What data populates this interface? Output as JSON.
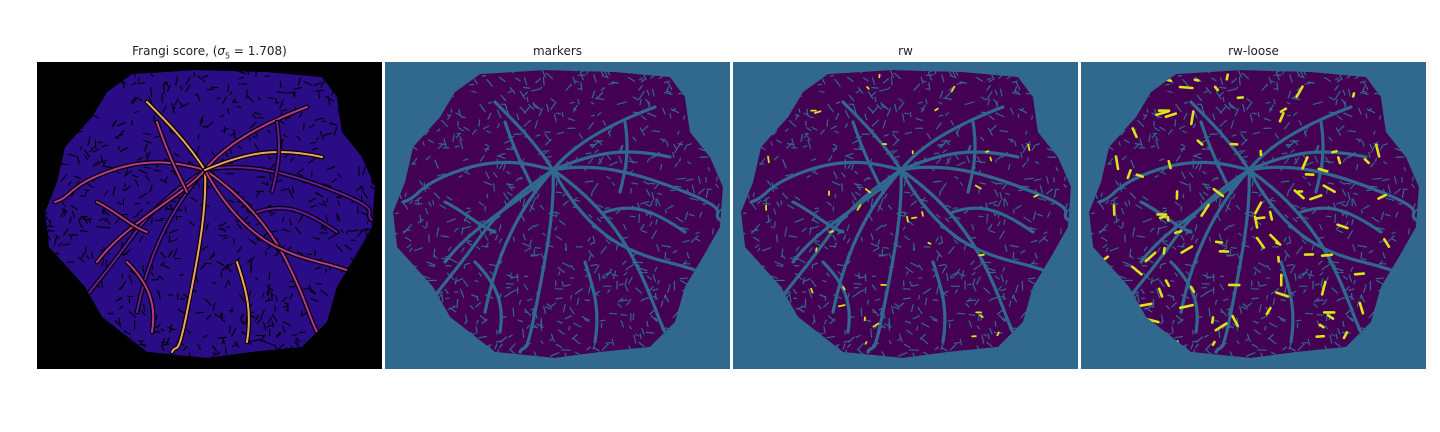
{
  "titles": {
    "frangi_prefix": "Frangi score, (",
    "frangi_sigma": "σ",
    "frangi_sub": "5",
    "frangi_suffix": " = 1.708)",
    "markers": "markers",
    "rw": "rw",
    "rw_loose": "rw-loose"
  },
  "colors": {
    "frangi_bg": "#000000",
    "frangi_tissue": "#2a0c86",
    "frangi_vessel_dark": "#6a1a9e",
    "frangi_vessel_mid": "#b7378a",
    "frangi_vessel_bright": "#f29e62",
    "viridis_bg": "#31688e",
    "viridis_tissue": "#440154",
    "viridis_vessel": "#31688e",
    "viridis_highlight": "#dde318"
  }
}
